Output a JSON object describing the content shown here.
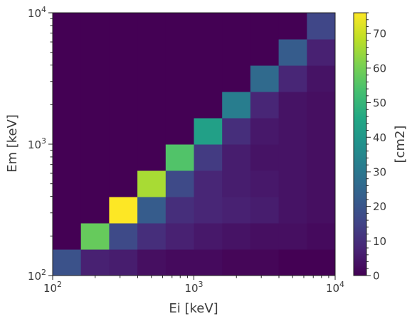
{
  "chart_data": {
    "type": "heatmap",
    "xlabel": "Ei [keV]",
    "ylabel": "Em [keV]",
    "x_scale": "log",
    "y_scale": "log",
    "xlim": [
      100,
      10000
    ],
    "ylim": [
      100,
      10000
    ],
    "x_ticks": [
      {
        "value": 100,
        "base": "10",
        "exp": "2"
      },
      {
        "value": 1000,
        "base": "10",
        "exp": "3"
      },
      {
        "value": 10000,
        "base": "10",
        "exp": "4"
      }
    ],
    "y_ticks": [
      {
        "value": 100,
        "base": "10",
        "exp": "2"
      },
      {
        "value": 1000,
        "base": "10",
        "exp": "3"
      },
      {
        "value": 10000,
        "base": "10",
        "exp": "4"
      }
    ],
    "bins_per_axis": 10,
    "bin_edges_log10": [
      2.0,
      2.2,
      2.4,
      2.6,
      2.8,
      3.0,
      3.2,
      3.4,
      3.6,
      3.8,
      4.0
    ],
    "z_note": "values[row][col]; row 0 = lowest Em bin, col 0 = lowest Ei bin",
    "values": [
      [
        19,
        7,
        6,
        3,
        2,
        2,
        1,
        1,
        0,
        0
      ],
      [
        0,
        58,
        17,
        10,
        7,
        5,
        4,
        3,
        3,
        2
      ],
      [
        0,
        0,
        76,
        22,
        10,
        8,
        7,
        6,
        4,
        3
      ],
      [
        0,
        0,
        0,
        66,
        17,
        8,
        6,
        5,
        4,
        3
      ],
      [
        0,
        0,
        0,
        0,
        55,
        13,
        6,
        4,
        4,
        3
      ],
      [
        0,
        0,
        0,
        0,
        0,
        43,
        10,
        5,
        4,
        3
      ],
      [
        0,
        0,
        0,
        0,
        0,
        0,
        32,
        8,
        4,
        3
      ],
      [
        0,
        0,
        0,
        0,
        0,
        0,
        0,
        26,
        8,
        4
      ],
      [
        0,
        0,
        0,
        0,
        0,
        0,
        0,
        0,
        22,
        7
      ],
      [
        0,
        0,
        0,
        0,
        0,
        0,
        0,
        0,
        0,
        16
      ]
    ],
    "colorbar": {
      "label": "[cm2]",
      "zlim": [
        0,
        76
      ],
      "ticks": [
        0,
        10,
        20,
        30,
        40,
        50,
        60,
        70
      ],
      "colormap": "viridis"
    }
  }
}
